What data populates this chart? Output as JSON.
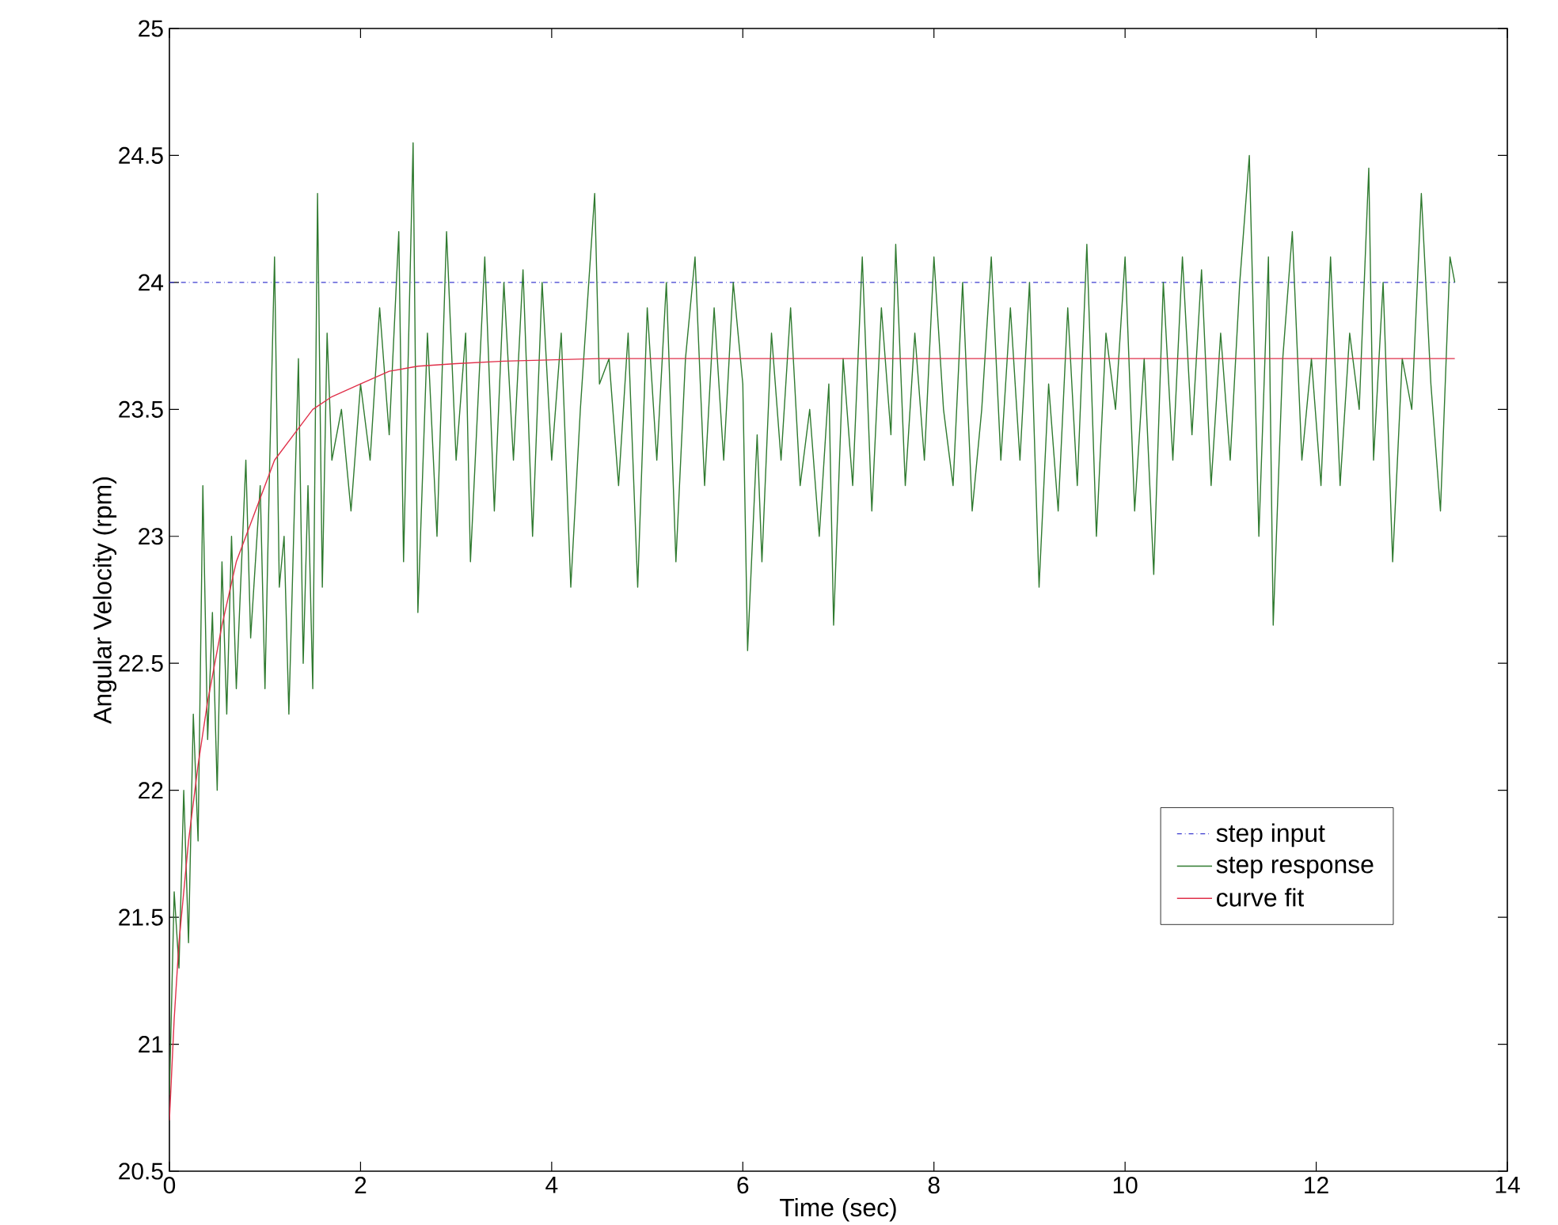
{
  "chart_data": {
    "type": "line",
    "xlabel": "Time (sec)",
    "ylabel": "Angular Velocity (rpm)",
    "xlim": [
      0,
      14
    ],
    "ylim": [
      20.5,
      25
    ],
    "xticks": [
      0,
      2,
      4,
      6,
      8,
      10,
      12,
      14
    ],
    "yticks": [
      20.5,
      21,
      21.5,
      22,
      22.5,
      23,
      23.5,
      24,
      24.5,
      25
    ],
    "grid": false,
    "legend": "right",
    "series": [
      {
        "name": "step input",
        "color": "#3c3cd0",
        "line_style": "dashdot",
        "x": [
          0,
          13.45
        ],
        "values": [
          24,
          24
        ]
      },
      {
        "name": "step response",
        "color": "#2f7a2f",
        "line_style": "solid",
        "x": [
          0,
          0.05,
          0.1,
          0.15,
          0.2,
          0.25,
          0.3,
          0.35,
          0.4,
          0.45,
          0.5,
          0.55,
          0.6,
          0.65,
          0.7,
          0.8,
          0.85,
          0.95,
          1.0,
          1.05,
          1.1,
          1.15,
          1.2,
          1.25,
          1.35,
          1.4,
          1.45,
          1.5,
          1.55,
          1.6,
          1.65,
          1.7,
          1.8,
          1.9,
          2.0,
          2.1,
          2.2,
          2.3,
          2.4,
          2.45,
          2.55,
          2.6,
          2.7,
          2.8,
          2.9,
          3.0,
          3.1,
          3.15,
          3.3,
          3.4,
          3.5,
          3.6,
          3.7,
          3.8,
          3.9,
          4.0,
          4.1,
          4.2,
          4.3,
          4.45,
          4.5,
          4.6,
          4.7,
          4.8,
          4.9,
          5.0,
          5.1,
          5.2,
          5.3,
          5.4,
          5.5,
          5.6,
          5.7,
          5.8,
          5.9,
          6.0,
          6.05,
          6.15,
          6.2,
          6.3,
          6.4,
          6.5,
          6.6,
          6.7,
          6.8,
          6.9,
          6.95,
          7.05,
          7.15,
          7.25,
          7.35,
          7.45,
          7.55,
          7.6,
          7.7,
          7.8,
          7.9,
          8.0,
          8.1,
          8.2,
          8.3,
          8.4,
          8.5,
          8.6,
          8.7,
          8.8,
          8.9,
          9.0,
          9.1,
          9.2,
          9.3,
          9.4,
          9.5,
          9.6,
          9.7,
          9.8,
          9.9,
          10.0,
          10.1,
          10.2,
          10.3,
          10.4,
          10.5,
          10.6,
          10.7,
          10.8,
          10.9,
          11.0,
          11.1,
          11.2,
          11.3,
          11.4,
          11.5,
          11.55,
          11.65,
          11.75,
          11.85,
          11.95,
          12.05,
          12.15,
          12.25,
          12.35,
          12.45,
          12.55,
          12.6,
          12.7,
          12.8,
          12.9,
          13.0,
          13.1,
          13.2,
          13.3,
          13.4,
          13.45
        ],
        "values": [
          20.8,
          21.6,
          21.3,
          22.0,
          21.4,
          22.3,
          21.8,
          23.2,
          22.2,
          22.7,
          22.0,
          22.9,
          22.3,
          23.0,
          22.4,
          23.3,
          22.6,
          23.2,
          22.4,
          23.3,
          24.1,
          22.8,
          23.0,
          22.3,
          23.7,
          22.5,
          23.2,
          22.4,
          24.35,
          22.8,
          23.8,
          23.3,
          23.5,
          23.1,
          23.6,
          23.3,
          23.9,
          23.4,
          24.2,
          22.9,
          24.55,
          22.7,
          23.8,
          23.0,
          24.2,
          23.3,
          23.8,
          22.9,
          24.1,
          23.1,
          24.0,
          23.3,
          24.05,
          23.0,
          24.0,
          23.3,
          23.8,
          22.8,
          23.5,
          24.35,
          23.6,
          23.7,
          23.2,
          23.8,
          22.8,
          23.9,
          23.3,
          24.0,
          22.9,
          23.7,
          24.1,
          23.2,
          23.9,
          23.3,
          24.0,
          23.6,
          22.55,
          23.4,
          22.9,
          23.8,
          23.3,
          23.9,
          23.2,
          23.5,
          23.0,
          23.6,
          22.65,
          23.7,
          23.2,
          24.1,
          23.1,
          23.9,
          23.4,
          24.15,
          23.2,
          23.8,
          23.3,
          24.1,
          23.5,
          23.2,
          24.0,
          23.1,
          23.5,
          24.1,
          23.3,
          23.9,
          23.3,
          24.0,
          22.8,
          23.6,
          23.1,
          23.9,
          23.2,
          24.15,
          23.0,
          23.8,
          23.5,
          24.1,
          23.1,
          23.7,
          22.85,
          24.0,
          23.3,
          24.1,
          23.4,
          24.05,
          23.2,
          23.8,
          23.3,
          24.0,
          24.5,
          23.0,
          24.1,
          22.65,
          23.7,
          24.2,
          23.3,
          23.7,
          23.2,
          24.1,
          23.2,
          23.8,
          23.5,
          24.45,
          23.3,
          24.0,
          22.9,
          23.7,
          23.5,
          24.35,
          23.6,
          23.1,
          24.1,
          24.0
        ]
      },
      {
        "name": "curve fit",
        "color": "#e0304a",
        "line_style": "solid",
        "x": [
          0,
          0.05,
          0.1,
          0.2,
          0.3,
          0.4,
          0.55,
          0.7,
          0.9,
          1.1,
          1.3,
          1.5,
          1.7,
          2.0,
          2.3,
          2.6,
          3.0,
          3.5,
          4.5,
          13.45
        ],
        "values": [
          20.7,
          21.1,
          21.4,
          21.8,
          22.1,
          22.35,
          22.65,
          22.9,
          23.1,
          23.3,
          23.4,
          23.5,
          23.55,
          23.6,
          23.65,
          23.67,
          23.68,
          23.69,
          23.7,
          23.7
        ]
      }
    ]
  }
}
